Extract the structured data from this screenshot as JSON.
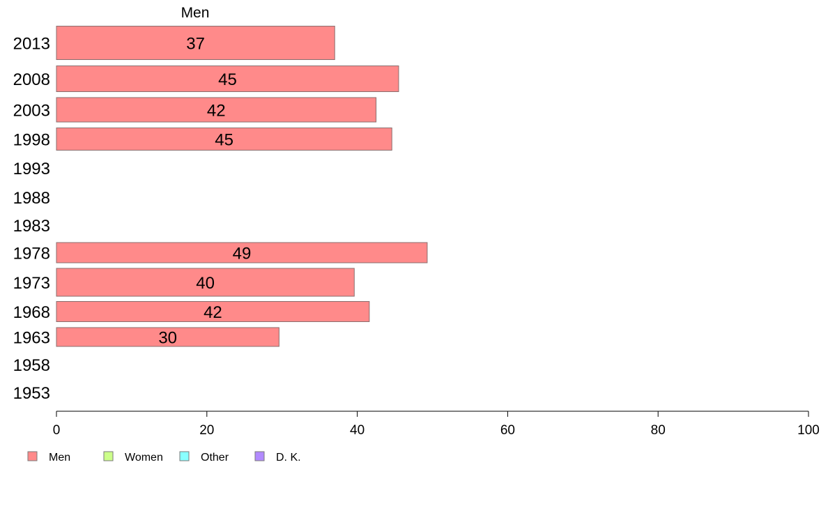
{
  "chart_data": {
    "type": "bar",
    "orientation": "horizontal",
    "series_header": "Men",
    "categories": [
      "2013",
      "2008",
      "2003",
      "1998",
      "1993",
      "1988",
      "1983",
      "1978",
      "1973",
      "1968",
      "1963",
      "1958",
      "1953"
    ],
    "series": [
      {
        "name": "Men",
        "color": "#ff8a8a",
        "values": [
          37,
          45.5,
          42.5,
          44.6,
          null,
          null,
          null,
          49.3,
          39.6,
          41.6,
          29.6,
          null,
          null
        ],
        "labels": [
          "37",
          "45",
          "42",
          "45",
          "",
          "",
          "",
          "49",
          "40",
          "42",
          "30",
          "",
          ""
        ]
      }
    ],
    "xlim": [
      0,
      100
    ],
    "xticks": [
      "0",
      "20",
      "40",
      "60",
      "80",
      "100"
    ],
    "legend": {
      "placement": "bottom-left",
      "entries": [
        {
          "label": "Men",
          "color": "#ff8a8a"
        },
        {
          "label": "Women",
          "color": "#ccff8a"
        },
        {
          "label": "Other",
          "color": "#8affff"
        },
        {
          "label": "D. K.",
          "color": "#b28aff"
        }
      ]
    },
    "grid": false,
    "xlabel": "",
    "ylabel": "",
    "title": ""
  }
}
